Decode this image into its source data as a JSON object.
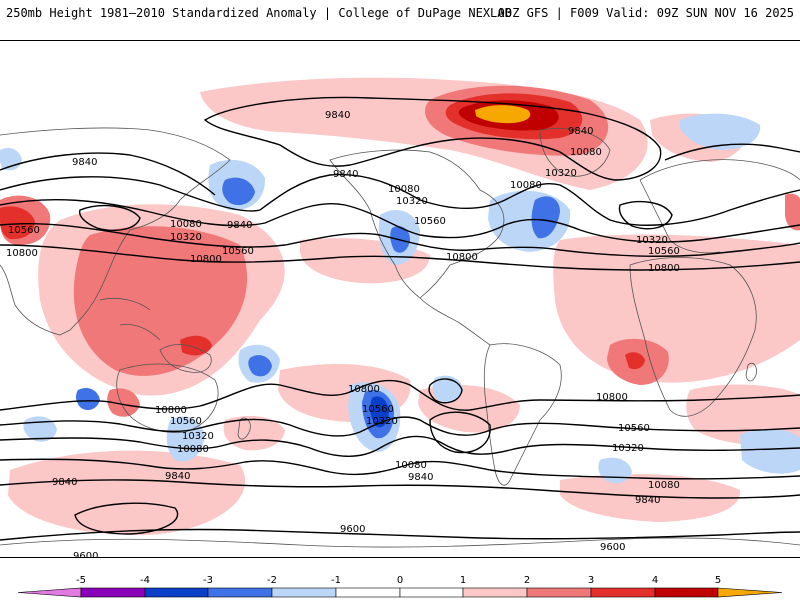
{
  "header": {
    "left_title": "250mb Height 1981–2010 Standardized Anomaly | College of DuPage NEXLAB",
    "right_title": "00Z GFS | F009 Valid: 09Z SUN NOV 16 2025"
  },
  "colors": {
    "a_neg5": "#e07ae0",
    "a_neg4": "#8a00b8",
    "a_neg3": "#0a3fc9",
    "a_neg2": "#3f72e6",
    "a_neg1": "#bcd6f7",
    "a_pos1": "#fbc7c7",
    "a_pos2": "#f07878",
    "a_pos3": "#e3302a",
    "a_pos4": "#c00000",
    "a_pos5": "#f6a800",
    "coast": "#555555",
    "contour": "#000000"
  },
  "contour_labels": [
    "9840",
    "9840",
    "9840",
    "9840",
    "9840",
    "9840",
    "9840",
    "9840",
    "9840",
    "10080",
    "10080",
    "10080",
    "10080",
    "10080",
    "10080",
    "10080",
    "10320",
    "10320",
    "10320",
    "10320",
    "10320",
    "10320",
    "10320",
    "10560",
    "10560",
    "10560",
    "10560",
    "10560",
    "10560",
    "10560",
    "10800",
    "10800",
    "10800",
    "10800",
    "10800",
    "10800",
    "10800",
    "9600",
    "9600",
    "9600"
  ],
  "colorbar": {
    "ticks": [
      "-5",
      "-4",
      "-3",
      "-2",
      "-1",
      "0",
      "1",
      "2",
      "3",
      "4",
      "5"
    ],
    "colors": [
      "#e07ae0",
      "#8a00b8",
      "#0a3fc9",
      "#3f72e6",
      "#bcd6f7",
      "#ffffff",
      "#ffffff",
      "#fbc7c7",
      "#f07878",
      "#e3302a",
      "#c00000",
      "#f6a800"
    ]
  }
}
